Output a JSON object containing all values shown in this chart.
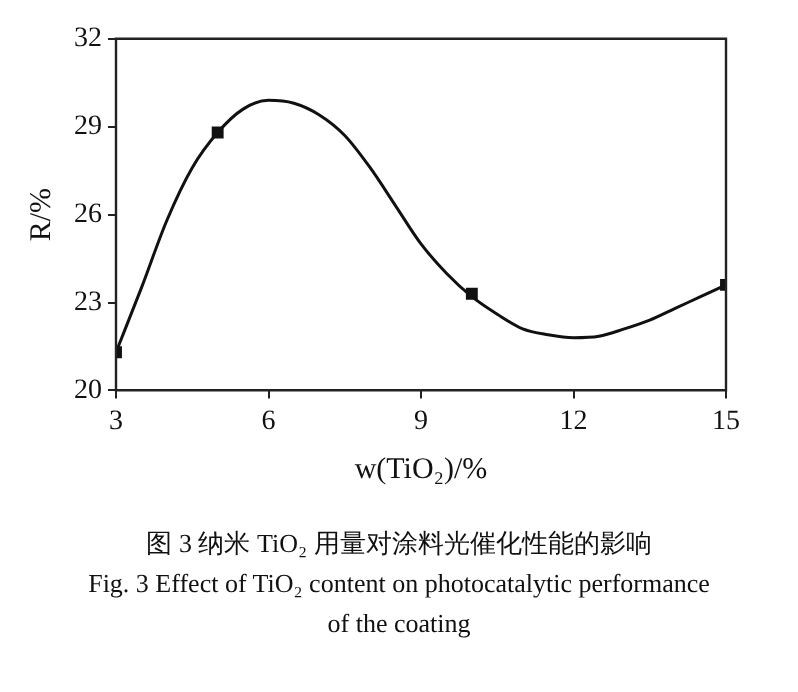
{
  "chart_data": {
    "type": "line",
    "xlabel": "w(TiO₂)/%",
    "ylabel": "R/%",
    "xlim": [
      3,
      15
    ],
    "xticks": [
      3,
      6,
      9,
      12,
      15
    ],
    "ylim": [
      20,
      32
    ],
    "yticks": [
      20,
      23,
      26,
      29,
      32
    ],
    "grid": false,
    "legend": false,
    "series": [
      {
        "type": "line",
        "color": "#111111",
        "marker": "none",
        "line_style": "solid",
        "x": [
          3,
          3.5,
          4,
          4.5,
          5,
          5.5,
          6,
          6.5,
          7,
          7.5,
          8,
          8.5,
          9,
          9.5,
          10,
          10.5,
          11,
          11.5,
          12,
          12.5,
          13,
          13.5,
          14,
          14.5,
          15
        ],
        "values": [
          21.3,
          23.5,
          25.8,
          27.6,
          28.8,
          29.6,
          29.9,
          29.8,
          29.4,
          28.7,
          27.6,
          26.3,
          25.0,
          24.0,
          23.2,
          22.6,
          22.1,
          21.9,
          21.8,
          21.85,
          22.1,
          22.4,
          22.8,
          23.2,
          23.6
        ]
      },
      {
        "type": "scatter",
        "color": "#111111",
        "marker": "square",
        "x": [
          3,
          5,
          10,
          15
        ],
        "values": [
          21.3,
          28.8,
          23.3,
          23.6
        ]
      }
    ],
    "annotations": [
      "图 3   纳米 TiO₂ 用量对涂料光催化性能的影响",
      "Fig. 3   Effect of TiO₂ content on photocatalytic performance of the coating"
    ]
  }
}
